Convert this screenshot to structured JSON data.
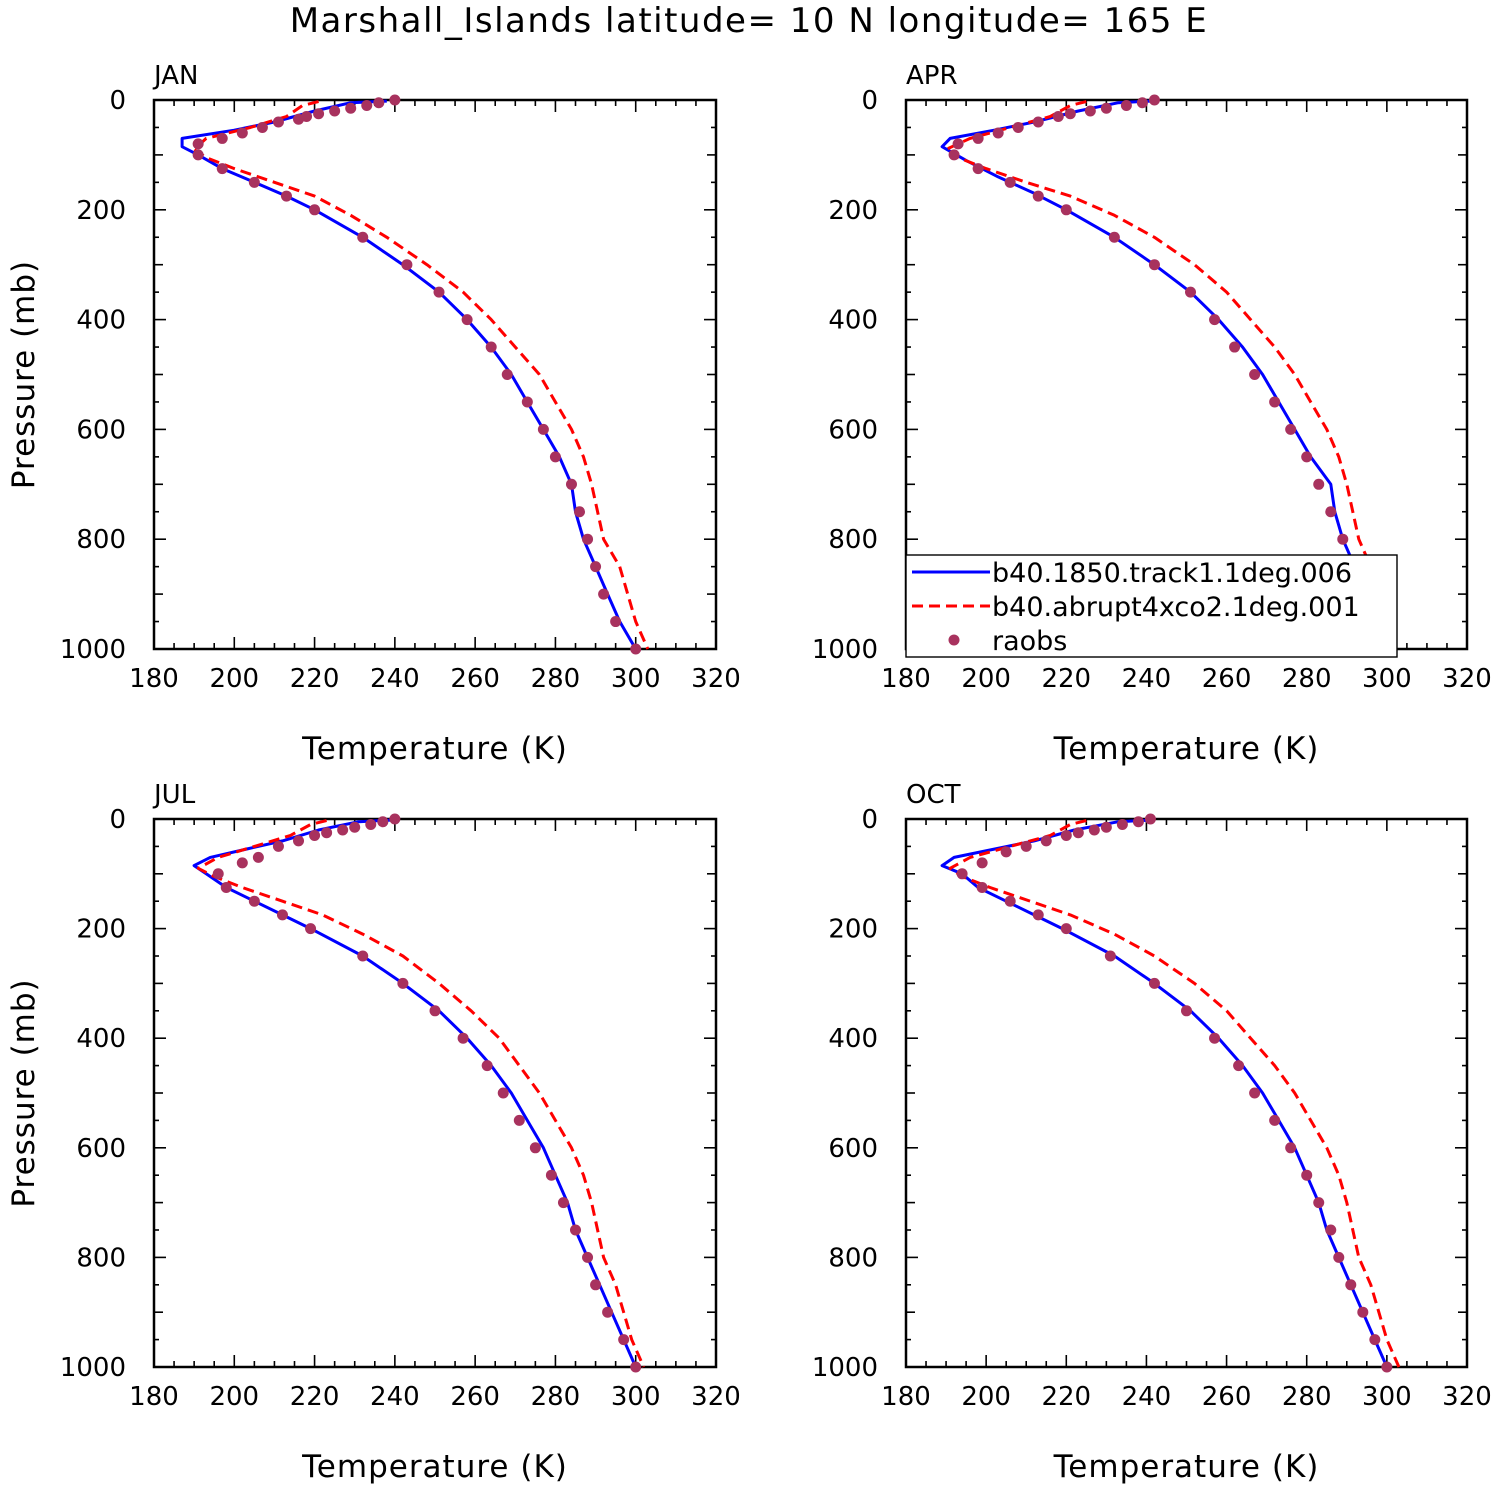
{
  "title": "Marshall_Islands  latitude= 10 N longitude= 165 E",
  "colors": {
    "control": "#0000ff",
    "abrupt4xco2": "#ff0000",
    "raobs": "#a8325e"
  },
  "legend": {
    "placement": "lower-right of APR panel",
    "items": [
      {
        "key": "control",
        "label": "b40.1850.track1.1deg.006",
        "style": "solid"
      },
      {
        "key": "abrupt4xco2",
        "label": "b40.abrupt4xco2.1deg.001",
        "style": "dashed"
      },
      {
        "key": "raobs",
        "label": "raobs",
        "style": "marker"
      }
    ]
  },
  "chart_data": [
    {
      "type": "line",
      "panel": "JAN",
      "xlabel": "Temperature (K)",
      "ylabel": "Pressure (mb)",
      "xlim": [
        180,
        320
      ],
      "ylim": [
        0,
        1000
      ],
      "y_inverted": true,
      "xticks": [
        "180",
        "200",
        "220",
        "240",
        "260",
        "280",
        "300",
        "320"
      ],
      "yticks": [
        "0",
        "200",
        "400",
        "600",
        "800",
        "1000"
      ],
      "series": [
        {
          "key": "control",
          "name": "b40.1850.track1.1deg.006",
          "x": [
            238,
            229,
            220,
            210,
            200,
            187,
            187,
            191,
            197,
            205,
            213,
            220,
            232,
            242,
            251,
            258,
            264,
            269,
            273,
            277,
            281,
            284,
            285,
            287,
            290,
            293,
            296,
            300
          ],
          "y": [
            2,
            5,
            20,
            40,
            55,
            70,
            85,
            100,
            125,
            150,
            175,
            200,
            250,
            300,
            350,
            400,
            450,
            500,
            550,
            600,
            650,
            700,
            750,
            800,
            850,
            900,
            950,
            1000
          ]
        },
        {
          "key": "abrupt4xco2",
          "name": "b40.abrupt4xco2.1deg.001",
          "x": [
            221,
            217,
            213,
            204,
            193,
            190,
            193,
            200,
            210,
            220,
            229,
            238,
            248,
            257,
            264,
            270,
            276,
            280,
            284,
            287,
            289,
            292,
            296,
            300,
            303
          ],
          "y": [
            3,
            10,
            30,
            50,
            70,
            90,
            105,
            125,
            150,
            175,
            210,
            250,
            300,
            350,
            400,
            450,
            500,
            550,
            600,
            650,
            700,
            800,
            850,
            950,
            1000
          ]
        },
        {
          "key": "raobs",
          "name": "raobs",
          "x": [
            240,
            236,
            233,
            229,
            225,
            221,
            218,
            216,
            211,
            207,
            202,
            197,
            191,
            191,
            197,
            205,
            213,
            220,
            232,
            243,
            251,
            258,
            264,
            268,
            273,
            277,
            280,
            284,
            286,
            288,
            290,
            292,
            295,
            300
          ],
          "y": [
            0,
            5,
            10,
            15,
            20,
            25,
            30,
            35,
            40,
            50,
            60,
            70,
            80,
            100,
            125,
            150,
            175,
            200,
            250,
            300,
            350,
            400,
            450,
            500,
            550,
            600,
            650,
            700,
            750,
            800,
            850,
            900,
            950,
            1000
          ]
        }
      ]
    },
    {
      "type": "line",
      "panel": "APR",
      "xlabel": "Temperature (K)",
      "ylabel": "",
      "xlim": [
        180,
        320
      ],
      "ylim": [
        0,
        1000
      ],
      "y_inverted": true,
      "xticks": [
        "180",
        "200",
        "220",
        "240",
        "260",
        "280",
        "300",
        "320"
      ],
      "yticks": [
        "0",
        "200",
        "400",
        "600",
        "800",
        "1000"
      ],
      "series": [
        {
          "key": "control",
          "name": "b40.1850.track1.1deg.006",
          "x": [
            241,
            233,
            223,
            212,
            202,
            191,
            189,
            195,
            203,
            212,
            220,
            232,
            242,
            251,
            258,
            264,
            269,
            273,
            277,
            281,
            286,
            287,
            289,
            292,
            295,
            299
          ],
          "y": [
            2,
            5,
            20,
            40,
            55,
            70,
            85,
            110,
            140,
            170,
            200,
            250,
            300,
            350,
            400,
            450,
            500,
            550,
            600,
            650,
            700,
            750,
            800,
            850,
            900,
            1000
          ]
        },
        {
          "key": "abrupt4xco2",
          "name": "b40.abrupt4xco2.1deg.001",
          "x": [
            225,
            221,
            216,
            206,
            196,
            190,
            193,
            200,
            210,
            221,
            232,
            242,
            252,
            260,
            266,
            272,
            277,
            281,
            285,
            288,
            290,
            293,
            296,
            299,
            302
          ],
          "y": [
            3,
            10,
            30,
            50,
            70,
            90,
            105,
            125,
            150,
            175,
            210,
            250,
            300,
            350,
            400,
            450,
            500,
            550,
            600,
            650,
            700,
            800,
            850,
            950,
            1000
          ]
        },
        {
          "key": "raobs",
          "name": "raobs",
          "x": [
            242,
            239,
            235,
            230,
            226,
            221,
            218,
            213,
            208,
            203,
            198,
            193,
            192,
            198,
            206,
            213,
            220,
            232,
            242,
            251,
            257,
            262,
            267,
            272,
            276,
            280,
            283,
            286,
            289,
            292,
            294,
            297,
            300
          ],
          "y": [
            0,
            5,
            10,
            15,
            20,
            25,
            30,
            40,
            50,
            60,
            70,
            80,
            100,
            125,
            150,
            175,
            200,
            250,
            300,
            350,
            400,
            450,
            500,
            550,
            600,
            650,
            700,
            750,
            800,
            850,
            900,
            950,
            1000
          ]
        }
      ]
    },
    {
      "type": "line",
      "panel": "JUL",
      "xlabel": "Temperature (K)",
      "ylabel": "Pressure (mb)",
      "xlim": [
        180,
        320
      ],
      "ylim": [
        0,
        1000
      ],
      "y_inverted": true,
      "xticks": [
        "180",
        "200",
        "220",
        "240",
        "260",
        "280",
        "300",
        "320"
      ],
      "yticks": [
        "0",
        "200",
        "400",
        "600",
        "800",
        "1000"
      ],
      "series": [
        {
          "key": "control",
          "name": "b40.1850.track1.1deg.006",
          "x": [
            239,
            231,
            221,
            212,
            203,
            194,
            190,
            193,
            198,
            205,
            212,
            219,
            232,
            242,
            251,
            258,
            264,
            269,
            273,
            277,
            280,
            283,
            285,
            288,
            291,
            294,
            297,
            300
          ],
          "y": [
            2,
            5,
            20,
            40,
            55,
            70,
            85,
            100,
            125,
            150,
            175,
            200,
            250,
            300,
            350,
            400,
            450,
            500,
            550,
            600,
            650,
            700,
            750,
            800,
            850,
            900,
            950,
            1000
          ]
        },
        {
          "key": "abrupt4xco2",
          "name": "b40.abrupt4xco2.1deg.001",
          "x": [
            223,
            219,
            214,
            205,
            196,
            191,
            195,
            202,
            212,
            222,
            232,
            242,
            251,
            259,
            266,
            271,
            276,
            280,
            284,
            287,
            289,
            292,
            295,
            299,
            302
          ],
          "y": [
            3,
            10,
            30,
            50,
            70,
            90,
            105,
            125,
            150,
            175,
            210,
            250,
            300,
            350,
            400,
            450,
            500,
            550,
            600,
            650,
            700,
            800,
            850,
            950,
            1000
          ]
        },
        {
          "key": "raobs",
          "name": "raobs",
          "x": [
            240,
            237,
            234,
            230,
            227,
            223,
            220,
            216,
            211,
            206,
            202,
            196,
            198,
            205,
            212,
            219,
            232,
            242,
            250,
            257,
            263,
            267,
            271,
            275,
            279,
            282,
            285,
            288,
            290,
            293,
            297,
            300
          ],
          "y": [
            0,
            5,
            10,
            15,
            20,
            25,
            30,
            40,
            50,
            70,
            80,
            100,
            125,
            150,
            175,
            200,
            250,
            300,
            350,
            400,
            450,
            500,
            550,
            600,
            650,
            700,
            750,
            800,
            850,
            900,
            950,
            1000
          ]
        }
      ]
    },
    {
      "type": "line",
      "panel": "OCT",
      "xlabel": "Temperature (K)",
      "ylabel": "",
      "xlim": [
        180,
        320
      ],
      "ylim": [
        0,
        1000
      ],
      "y_inverted": true,
      "xticks": [
        "180",
        "200",
        "220",
        "240",
        "260",
        "280",
        "300",
        "320"
      ],
      "yticks": [
        "0",
        "200",
        "400",
        "600",
        "800",
        "1000"
      ],
      "series": [
        {
          "key": "control",
          "name": "b40.1850.track1.1deg.006",
          "x": [
            241,
            233,
            222,
            212,
            202,
            192,
            189,
            194,
            198,
            205,
            212,
            219,
            232,
            242,
            251,
            258,
            264,
            269,
            273,
            277,
            280,
            283,
            285,
            288,
            291,
            294,
            297,
            300
          ],
          "y": [
            2,
            5,
            20,
            40,
            55,
            70,
            85,
            100,
            125,
            150,
            175,
            200,
            250,
            300,
            350,
            400,
            450,
            500,
            550,
            600,
            650,
            700,
            750,
            800,
            850,
            900,
            950,
            1000
          ]
        },
        {
          "key": "abrupt4xco2",
          "name": "b40.abrupt4xco2.1deg.001",
          "x": [
            225,
            221,
            216,
            206,
            196,
            191,
            194,
            201,
            211,
            221,
            232,
            242,
            252,
            260,
            266,
            272,
            277,
            281,
            285,
            288,
            290,
            293,
            296,
            300,
            303
          ],
          "y": [
            3,
            10,
            30,
            50,
            70,
            90,
            105,
            125,
            150,
            175,
            210,
            250,
            300,
            350,
            400,
            450,
            500,
            550,
            600,
            650,
            700,
            800,
            850,
            950,
            1000
          ]
        },
        {
          "key": "raobs",
          "name": "raobs",
          "x": [
            241,
            238,
            234,
            230,
            227,
            223,
            220,
            215,
            210,
            205,
            199,
            194,
            199,
            206,
            213,
            220,
            231,
            242,
            250,
            257,
            263,
            267,
            272,
            276,
            280,
            283,
            286,
            288,
            291,
            294,
            297,
            300
          ],
          "y": [
            0,
            5,
            10,
            15,
            20,
            25,
            30,
            40,
            50,
            60,
            80,
            100,
            125,
            150,
            175,
            200,
            250,
            300,
            350,
            400,
            450,
            500,
            550,
            600,
            650,
            700,
            750,
            800,
            850,
            900,
            950,
            1000
          ]
        }
      ]
    }
  ]
}
